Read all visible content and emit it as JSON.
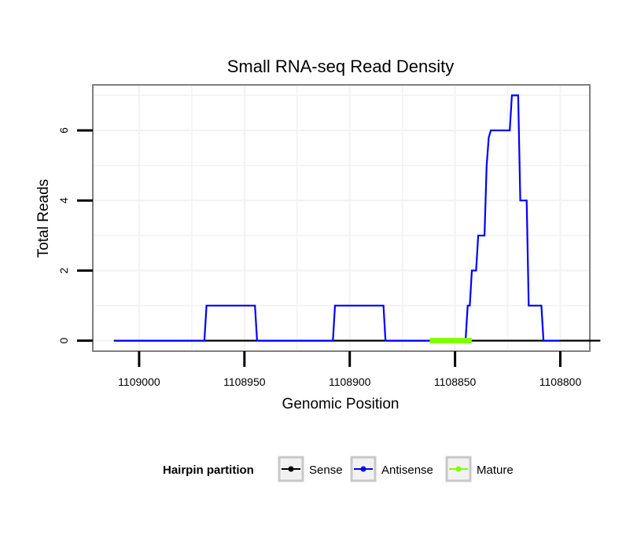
{
  "chart_data": {
    "type": "line",
    "title": "Small RNA-seq Read Density",
    "xlabel": "Genomic Position",
    "ylabel": "Total Reads",
    "x_reversed": true,
    "xlim": [
      1109022,
      1108786
    ],
    "ylim": [
      -0.3,
      7.3
    ],
    "x_ticks": [
      1109000,
      1108950,
      1108900,
      1108850,
      1108800
    ],
    "x_tick_labels": [
      "1109000",
      "1108950",
      "1108900",
      "1108850",
      "1108800"
    ],
    "y_ticks": [
      0,
      2,
      4,
      6
    ],
    "y_tick_labels": [
      "0",
      "2",
      "4",
      "6"
    ],
    "grid": true,
    "series": [
      {
        "name": "Sense",
        "color": "#000000",
        "x": [
          1109012,
          1108781
        ],
        "y": [
          0,
          0
        ]
      },
      {
        "name": "Antisense",
        "color": "#0000ff",
        "x": [
          1109012,
          1108969,
          1108968,
          1108945,
          1108944,
          1108908,
          1108907,
          1108884,
          1108883,
          1108845,
          1108844,
          1108843,
          1108842,
          1108840,
          1108839,
          1108836,
          1108835,
          1108834,
          1108833,
          1108832,
          1108831,
          1108824,
          1108823,
          1108820,
          1108819,
          1108816,
          1108815,
          1108809,
          1108808,
          1108800
        ],
        "y": [
          0,
          0,
          1,
          1,
          0,
          0,
          1,
          1,
          0,
          0,
          1,
          1,
          2,
          2,
          3,
          3,
          5,
          5.8,
          6,
          6,
          6,
          6,
          7,
          7,
          4,
          4,
          1,
          1,
          0,
          0
        ]
      },
      {
        "name": "Mature",
        "color": "#7fff00",
        "x": [
          1108862,
          1108842
        ],
        "y": [
          0,
          0
        ]
      }
    ],
    "legend": {
      "title": "Hairpin partition",
      "position": "bottom",
      "entries": [
        "Sense",
        "Antisense",
        "Mature"
      ]
    }
  }
}
